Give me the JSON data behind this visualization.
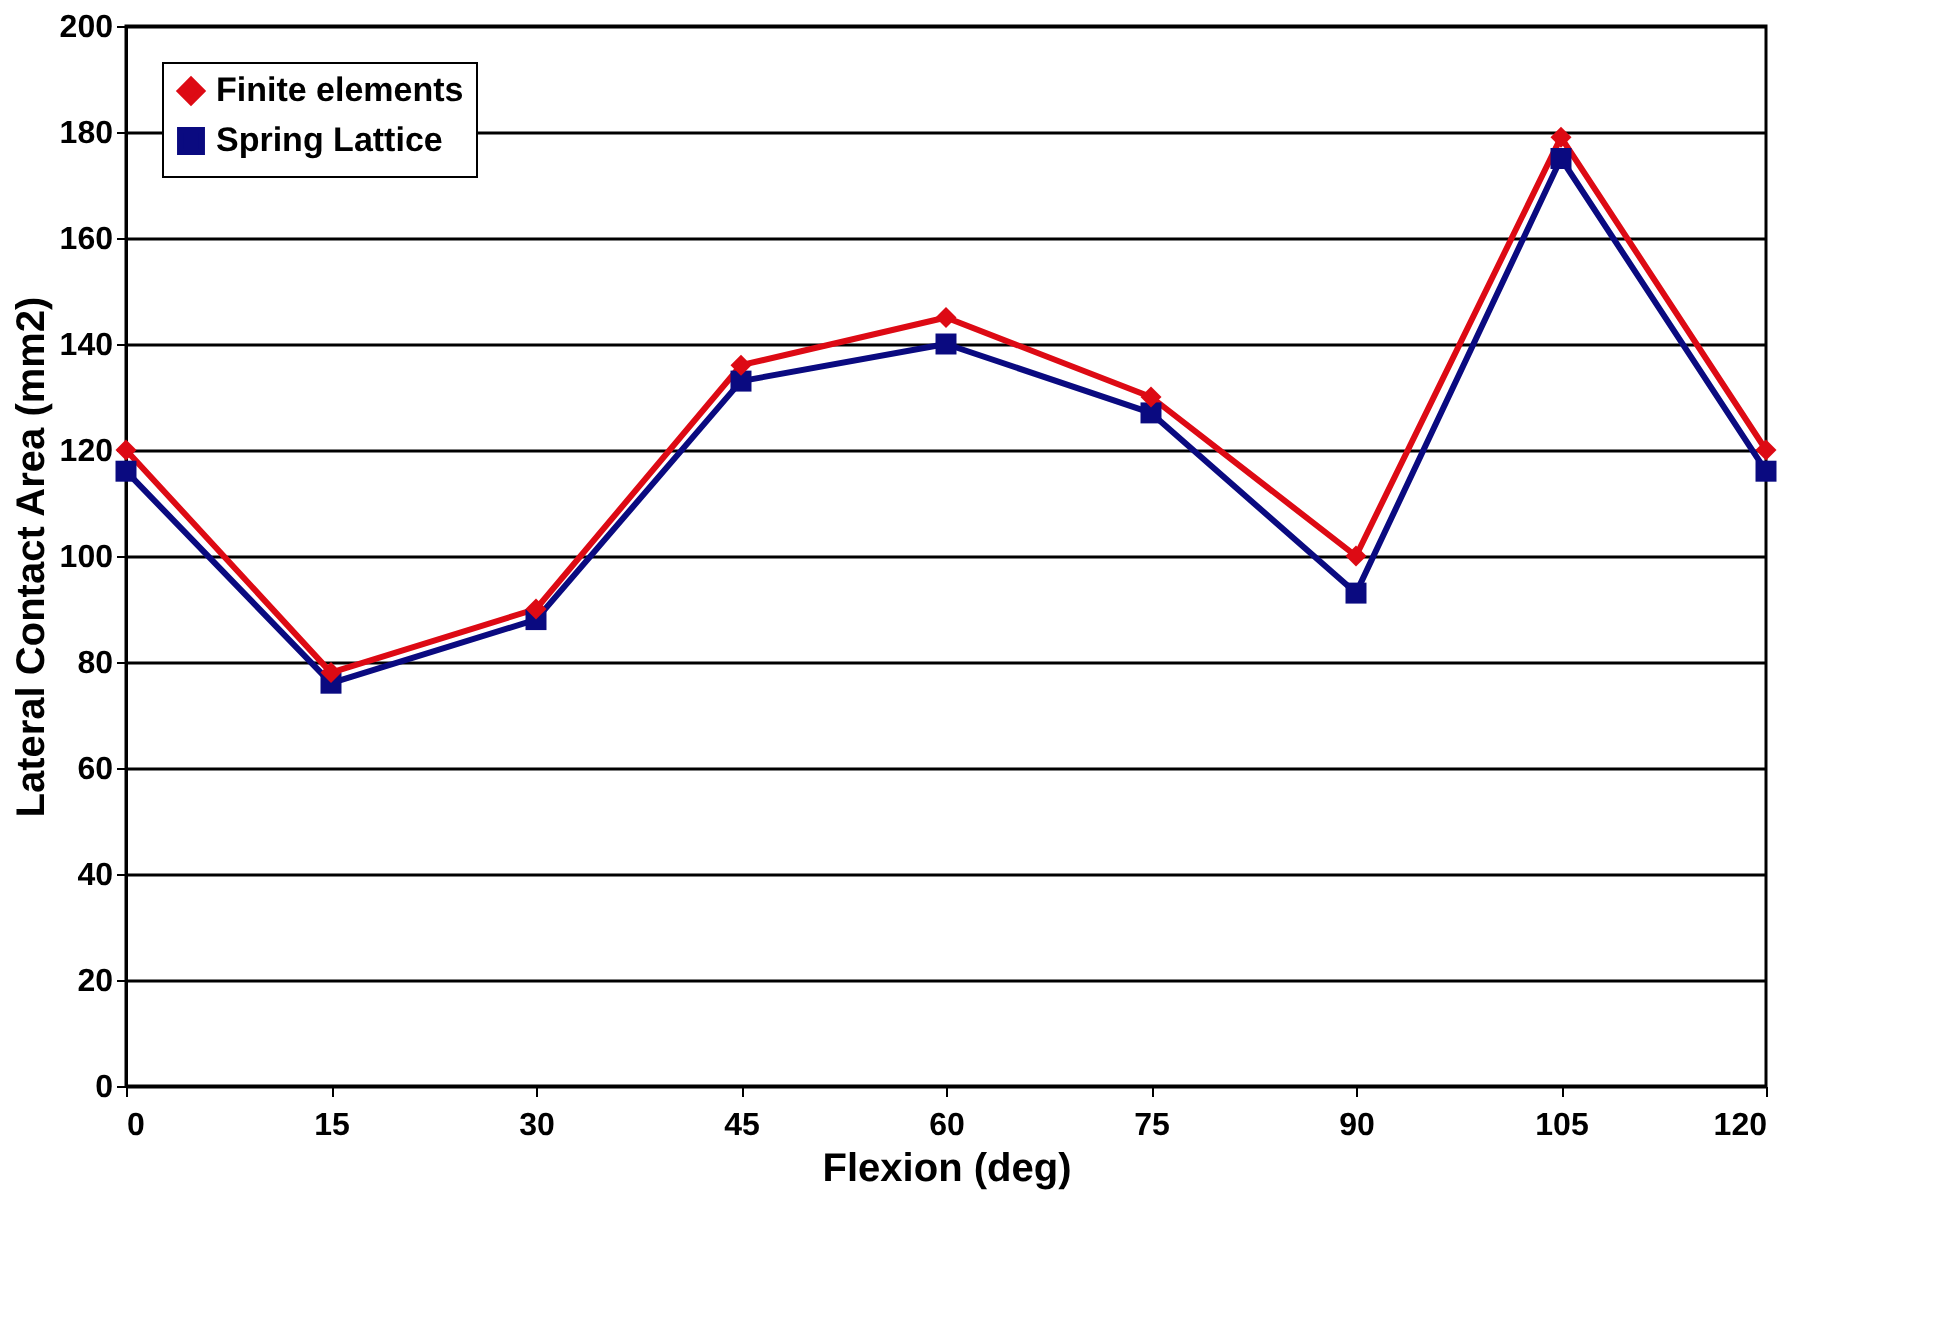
{
  "chart_data": {
    "type": "line",
    "xlabel": "Flexion (deg)",
    "ylabel": "Lateral Contact Area (mm2)",
    "x": [
      0,
      15,
      30,
      45,
      60,
      75,
      90,
      105,
      120
    ],
    "series": [
      {
        "name": "Finite elements",
        "color": "#dd0a14",
        "marker": "diamond",
        "values": [
          120,
          78,
          90,
          136,
          145,
          130,
          100,
          179,
          120
        ]
      },
      {
        "name": "Spring Lattice",
        "color": "#0a0a80",
        "marker": "square",
        "values": [
          116,
          76,
          88,
          133,
          140,
          127,
          93,
          175,
          116
        ]
      }
    ],
    "xlim": [
      0,
      120
    ],
    "xticks": [
      0,
      15,
      30,
      45,
      60,
      75,
      90,
      105,
      120
    ],
    "ylim": [
      0,
      200
    ],
    "yticks": [
      0,
      20,
      40,
      60,
      80,
      100,
      120,
      140,
      160,
      180,
      200
    ],
    "grid": "y",
    "legend": "top left",
    "line_style": "solid"
  }
}
